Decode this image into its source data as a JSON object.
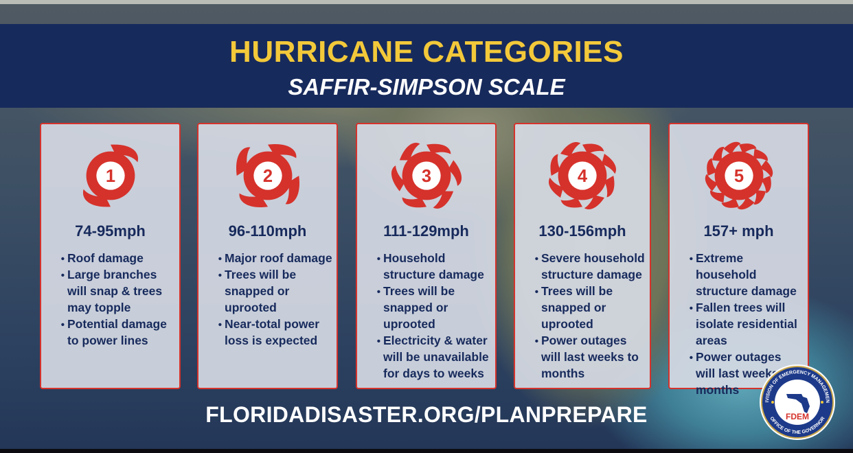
{
  "header": {
    "title": "HURRICANE CATEGORIES",
    "subtitle": "SAFFIR-SIMPSON SCALE"
  },
  "colors": {
    "banner": "#172a5c",
    "title": "#f3c93a",
    "accent_red": "#d5322b",
    "card_text": "#172a5c"
  },
  "categories": [
    {
      "number": "1",
      "speed": "74-95mph",
      "icon": "hurricane-category-1-icon",
      "bullets": [
        "Roof damage",
        "Large branches will snap & trees may topple",
        "Potential damage to power lines"
      ]
    },
    {
      "number": "2",
      "speed": "96-110mph",
      "icon": "hurricane-category-2-icon",
      "bullets": [
        "Major roof damage",
        "Trees will be snapped or uprooted",
        "Near-total power loss is expected"
      ]
    },
    {
      "number": "3",
      "speed": "111-129mph",
      "icon": "hurricane-category-3-icon",
      "bullets": [
        "Household structure damage",
        "Trees will be snapped or uprooted",
        "Electricity & water will be unavailable for  days to weeks"
      ]
    },
    {
      "number": "4",
      "speed": "130-156mph",
      "icon": "hurricane-category-4-icon",
      "bullets": [
        "Severe household structure damage",
        "Trees will be snapped or uprooted",
        "Power outages will last weeks to months"
      ]
    },
    {
      "number": "5",
      "speed": "157+ mph",
      "icon": "hurricane-category-5-icon",
      "bullets": [
        "Extreme household structure damage",
        "Fallen trees will isolate residential areas",
        "Power outages will last weeks to months"
      ]
    }
  ],
  "footer": {
    "url": "FLORIDADISASTER.ORG/PLANPREPARE"
  },
  "seal": {
    "center_text": "FDEM",
    "ring_text_top": "DIVISION OF EMERGENCY MANAGEMENT",
    "ring_text_bottom": "OFFICE OF THE GOVERNOR",
    "icon": "fdem-seal-logo"
  }
}
